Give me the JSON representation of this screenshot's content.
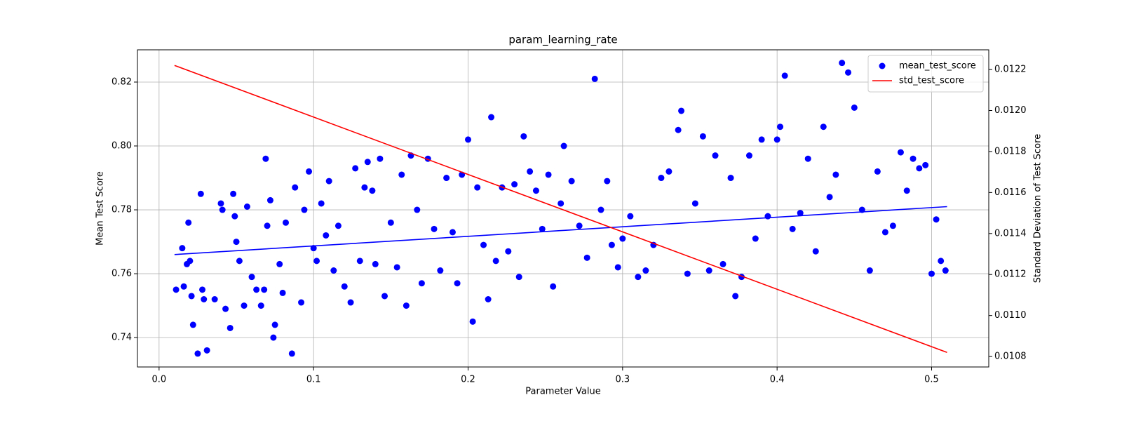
{
  "chart_data": {
    "type": "scatter",
    "title": "param_learning_rate",
    "xlabel": "Parameter Value",
    "ylabel": "Mean Test Score",
    "y2label": "Standard Deviation of Test Score",
    "xlim": [
      -0.014,
      0.537
    ],
    "ylim": [
      0.7308,
      0.8301
    ],
    "y2lim": [
      0.010749,
      0.012296
    ],
    "xticks": [
      {
        "value": 0,
        "label": "0.0"
      },
      0.1,
      0.2,
      0.3,
      0.4,
      0.5
    ],
    "yticks": [
      0.74,
      0.76,
      0.78,
      {
        "value": 0.8,
        "label": "0.80"
      },
      0.82
    ],
    "y2ticks": [
      0.0108,
      {
        "value": 0.011,
        "label": "0.0110"
      },
      0.0112,
      0.0114,
      0.0116,
      0.0118,
      {
        "value": 0.012,
        "label": "0.0120"
      },
      0.0122
    ],
    "grid": true,
    "legend": "upper right",
    "series": [
      {
        "name": "mean_test_score",
        "type": "scatter",
        "color": "#0000ff",
        "x": [
          0.011,
          0.015,
          0.016,
          0.018,
          0.019,
          0.02,
          0.021,
          0.022,
          0.025,
          0.027,
          0.028,
          0.029,
          0.031,
          0.036,
          0.04,
          0.041,
          0.043,
          0.046,
          0.048,
          0.049,
          0.05,
          0.052,
          0.055,
          0.057,
          0.06,
          0.063,
          0.066,
          0.068,
          0.069,
          0.07,
          0.072,
          0.074,
          0.075,
          0.078,
          0.08,
          0.082,
          0.086,
          0.088,
          0.092,
          0.094,
          0.097,
          0.1,
          0.102,
          0.105,
          0.108,
          0.11,
          0.113,
          0.116,
          0.12,
          0.124,
          0.127,
          0.13,
          0.133,
          0.135,
          0.138,
          0.14,
          0.143,
          0.146,
          0.15,
          0.154,
          0.157,
          0.16,
          0.163,
          0.167,
          0.17,
          0.174,
          0.178,
          0.182,
          0.186,
          0.19,
          0.193,
          0.196,
          0.2,
          0.203,
          0.206,
          0.21,
          0.213,
          0.215,
          0.218,
          0.222,
          0.226,
          0.23,
          0.233,
          0.236,
          0.24,
          0.244,
          0.248,
          0.252,
          0.255,
          0.26,
          0.262,
          0.267,
          0.272,
          0.277,
          0.282,
          0.286,
          0.29,
          0.293,
          0.297,
          0.3,
          0.305,
          0.31,
          0.315,
          0.32,
          0.325,
          0.33,
          0.336,
          0.338,
          0.342,
          0.347,
          0.352,
          0.356,
          0.36,
          0.365,
          0.37,
          0.373,
          0.377,
          0.382,
          0.386,
          0.39,
          0.394,
          0.4,
          0.402,
          0.405,
          0.41,
          0.415,
          0.42,
          0.425,
          0.43,
          0.434,
          0.438,
          0.442,
          0.446,
          0.45,
          0.455,
          0.46,
          0.465,
          0.47,
          0.475,
          0.48,
          0.484,
          0.488,
          0.492,
          0.496,
          0.5,
          0.503,
          0.506,
          0.509
        ],
        "values": [
          0.755,
          0.768,
          0.756,
          0.763,
          0.776,
          0.764,
          0.753,
          0.744,
          0.735,
          0.785,
          0.755,
          0.752,
          0.736,
          0.752,
          0.782,
          0.78,
          0.749,
          0.743,
          0.785,
          0.778,
          0.77,
          0.764,
          0.75,
          0.781,
          0.759,
          0.755,
          0.75,
          0.755,
          0.796,
          0.775,
          0.783,
          0.74,
          0.744,
          0.763,
          0.754,
          0.776,
          0.735,
          0.787,
          0.751,
          0.78,
          0.792,
          0.768,
          0.764,
          0.782,
          0.772,
          0.789,
          0.761,
          0.775,
          0.756,
          0.751,
          0.793,
          0.764,
          0.787,
          0.795,
          0.786,
          0.763,
          0.796,
          0.753,
          0.776,
          0.762,
          0.791,
          0.75,
          0.797,
          0.78,
          0.757,
          0.796,
          0.774,
          0.761,
          0.79,
          0.773,
          0.757,
          0.791,
          0.802,
          0.745,
          0.787,
          0.769,
          0.752,
          0.809,
          0.764,
          0.787,
          0.767,
          0.788,
          0.759,
          0.803,
          0.792,
          0.786,
          0.774,
          0.791,
          0.756,
          0.782,
          0.8,
          0.789,
          0.775,
          0.765,
          0.821,
          0.78,
          0.789,
          0.769,
          0.762,
          0.771,
          0.778,
          0.759,
          0.761,
          0.769,
          0.79,
          0.792,
          0.805,
          0.811,
          0.76,
          0.782,
          0.803,
          0.761,
          0.797,
          0.763,
          0.79,
          0.753,
          0.759,
          0.797,
          0.771,
          0.802,
          0.778,
          0.802,
          0.806,
          0.822,
          0.774,
          0.779,
          0.796,
          0.767,
          0.806,
          0.784,
          0.791,
          0.826,
          0.823,
          0.812,
          0.78,
          0.761,
          0.792,
          0.773,
          0.775,
          0.798,
          0.786,
          0.796,
          0.793,
          0.794,
          0.76,
          0.777,
          0.764,
          0.761
        ]
      },
      {
        "type": "line",
        "color": "#0000ff",
        "x": [
          0.01,
          0.51
        ],
        "values": [
          0.766,
          0.781
        ]
      },
      {
        "name": "std_test_score",
        "type": "line",
        "axis": "y2",
        "color": "#ff0000",
        "x": [
          0.01,
          0.51
        ],
        "values": [
          0.01222,
          0.01082
        ]
      }
    ]
  }
}
